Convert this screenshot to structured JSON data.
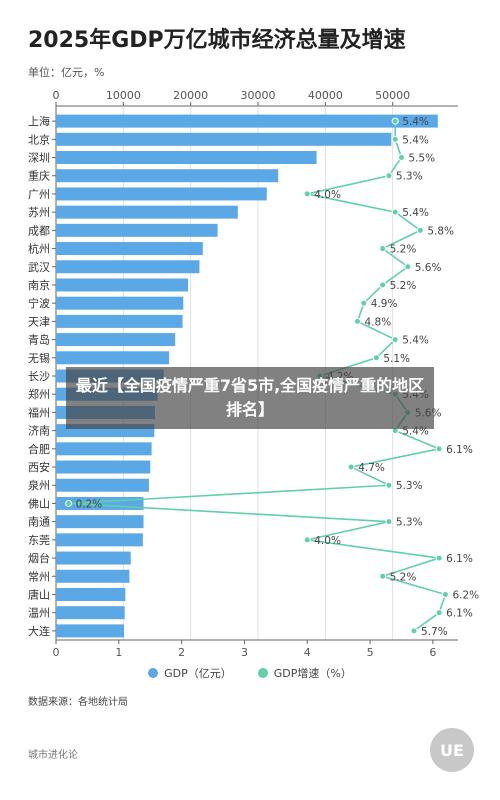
{
  "title": "2025年GDP万亿城市经济总量及增速",
  "unit_label": "单位：亿元，%",
  "source": "数据来源：各地统计局",
  "brand": "城市进化论",
  "logo_text": "UE",
  "overlay_text": "最近【全国疫情严重7省5市,全国疫情严重的地区排名】",
  "legend": {
    "gdp_label": "GDP（亿元）",
    "growth_label": "GDP增速（%）"
  },
  "colors": {
    "bar": "#5aa9e6",
    "line": "#5fd0a8",
    "grid": "#d9d9d9",
    "axis_text": "#555555"
  },
  "chart_data": {
    "type": "bar",
    "categories": [
      "上海",
      "北京",
      "深圳",
      "重庆",
      "广州",
      "苏州",
      "成都",
      "杭州",
      "武汉",
      "南京",
      "宁波",
      "天津",
      "青岛",
      "无锡",
      "长沙",
      "郑州",
      "福州",
      "济南",
      "合肥",
      "西安",
      "泉州",
      "佛山",
      "南通",
      "东莞",
      "烟台",
      "常州",
      "唐山",
      "温州",
      "大连"
    ],
    "series": [
      {
        "name": "GDP（亿元）",
        "axis": "top",
        "values": [
          56700,
          49800,
          38700,
          33000,
          31300,
          27000,
          24000,
          21800,
          21300,
          19600,
          18900,
          18800,
          17700,
          16800,
          16000,
          15100,
          14700,
          14600,
          14200,
          14000,
          13800,
          13000,
          13000,
          12900,
          11100,
          10900,
          10300,
          10200,
          10100
        ]
      },
      {
        "name": "GDP增速（%）",
        "axis": "bottom",
        "type": "line",
        "values": [
          5.4,
          5.4,
          5.5,
          5.3,
          4.0,
          5.4,
          5.8,
          5.2,
          5.6,
          5.2,
          4.9,
          4.8,
          5.4,
          5.1,
          4.2,
          5.4,
          5.6,
          5.4,
          6.1,
          4.7,
          5.3,
          0.2,
          5.3,
          4.0,
          6.1,
          5.2,
          6.2,
          6.1,
          5.7
        ],
        "labels": [
          "5.4%",
          "5.4%",
          "5.5%",
          "5.3%",
          "4.0%",
          "5.4%",
          "5.8%",
          "5.2%",
          "5.6%",
          "5.2%",
          "4.9%",
          "4.8%",
          "5.4%",
          "5.1%",
          "4.2%",
          "5.4%",
          "5.6%",
          "5.4%",
          "6.1%",
          "4.7%",
          "5.3%",
          "0.2%",
          "5.3%",
          "4.0%",
          "6.1%",
          "5.2%",
          "6.2%",
          "6.1%",
          "5.7%"
        ]
      }
    ],
    "x_top_ticks": [
      "0",
      "10000",
      "20000",
      "30000",
      "40000",
      "50000"
    ],
    "x_top_range": [
      0,
      60000
    ],
    "x_bottom_ticks": [
      "0",
      "1",
      "2",
      "3",
      "4",
      "5",
      "6"
    ],
    "x_bottom_range": [
      0,
      6.5
    ],
    "grid": true,
    "legend_position": "bottom"
  }
}
